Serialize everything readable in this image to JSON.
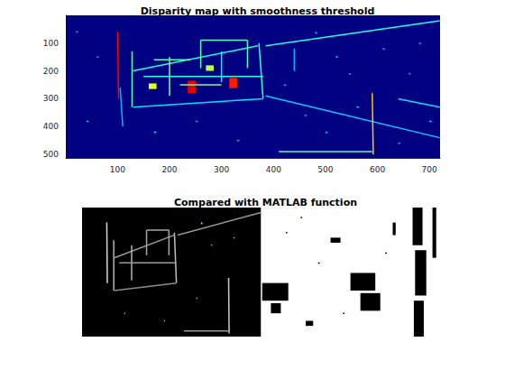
{
  "chart_data": [
    {
      "type": "image",
      "title": "Disparity map with smoothness threshold",
      "xlim": [
        0.5,
        720.5
      ],
      "ylim": [
        0.5,
        512.5
      ],
      "xticks": [
        100,
        200,
        300,
        400,
        500,
        600,
        700
      ],
      "yticks": [
        100,
        200,
        300,
        400,
        500
      ],
      "color": "jet",
      "clim": [
        0,
        1
      ],
      "rects": [
        [
          0.5,
          0.5,
          720.5,
          512.5,
          0
        ],
        [
          235,
          235,
          250,
          280,
          0.9
        ],
        [
          315,
          225,
          330,
          262,
          0.85
        ],
        [
          160,
          245,
          175,
          265,
          0.6
        ],
        [
          270,
          180,
          285,
          200,
          0.55
        ]
      ],
      "strokes": [
        [
          100,
          60,
          102,
          300,
          0.88
        ],
        [
          128,
          130,
          128,
          330,
          0.45
        ],
        [
          130,
          200,
          370,
          110,
          0.4
        ],
        [
          372,
          100,
          380,
          300,
          0.42
        ],
        [
          380,
          300,
          130,
          330,
          0.35
        ],
        [
          385,
          110,
          720,
          20,
          0.4
        ],
        [
          385,
          290,
          720,
          440,
          0.33
        ],
        [
          590,
          280,
          592,
          500,
          0.68
        ],
        [
          410,
          490,
          590,
          490,
          0.45
        ],
        [
          200,
          150,
          200,
          290,
          0.5
        ],
        [
          260,
          90,
          350,
          90,
          0.45
        ],
        [
          260,
          90,
          260,
          190,
          0.45
        ],
        [
          350,
          90,
          350,
          190,
          0.45
        ],
        [
          150,
          220,
          380,
          220,
          0.4
        ],
        [
          220,
          250,
          300,
          250,
          0.5
        ],
        [
          640,
          300,
          720,
          330,
          0.35
        ],
        [
          440,
          120,
          440,
          200,
          0.3
        ],
        [
          105,
          260,
          110,
          400,
          0.3
        ],
        [
          170,
          160,
          240,
          160,
          0.45
        ],
        [
          300,
          130,
          300,
          240,
          0.38
        ],
        [
          480,
          60,
          484,
          66,
          0.3
        ],
        [
          520,
          150,
          524,
          150,
          0.35
        ],
        [
          545,
          210,
          549,
          212,
          0.3
        ],
        [
          610,
          120,
          614,
          122,
          0.32
        ],
        [
          660,
          210,
          664,
          210,
          0.3
        ],
        [
          700,
          380,
          704,
          382,
          0.35
        ],
        [
          460,
          360,
          464,
          360,
          0.3
        ],
        [
          500,
          420,
          504,
          422,
          0.32
        ],
        [
          640,
          460,
          644,
          460,
          0.3
        ],
        [
          60,
          150,
          64,
          150,
          0.3
        ],
        [
          40,
          380,
          44,
          382,
          0.32
        ],
        [
          20,
          60,
          24,
          60,
          0.3
        ],
        [
          170,
          420,
          174,
          420,
          0.35
        ],
        [
          250,
          380,
          254,
          382,
          0.3
        ],
        [
          330,
          450,
          334,
          450,
          0.32
        ],
        [
          420,
          250,
          424,
          252,
          0.3
        ],
        [
          560,
          330,
          564,
          330,
          0.35
        ],
        [
          680,
          100,
          684,
          102,
          0.3
        ]
      ]
    },
    {
      "type": "image",
      "title": "Compared with MATLAB function",
      "tick_labels": false,
      "xlim": [
        0.5,
        1440.5
      ],
      "ylim": [
        0.5,
        512.5
      ],
      "color": "gray",
      "clim": [
        0,
        1
      ],
      "rects": [
        [
          0.5,
          0.5,
          720.5,
          512.5,
          0
        ],
        [
          720.5,
          0.5,
          1440.5,
          512.5,
          1
        ],
        [
          1330,
          0.5,
          1370,
          150,
          0
        ],
        [
          1340,
          170,
          1385,
          350,
          0
        ],
        [
          1335,
          370,
          1375,
          512.5,
          0
        ],
        [
          1410,
          0.5,
          1425,
          200,
          0
        ],
        [
          725,
          300,
          830,
          370,
          0
        ],
        [
          760,
          380,
          800,
          420,
          0
        ],
        [
          1080,
          260,
          1180,
          330,
          0
        ],
        [
          1120,
          340,
          1200,
          410,
          0
        ],
        [
          1000,
          120,
          1040,
          140,
          0
        ],
        [
          1250,
          60,
          1262,
          110,
          0
        ],
        [
          900,
          450,
          930,
          470,
          0
        ]
      ],
      "strokes": [
        [
          100,
          60,
          102,
          300,
          0.85
        ],
        [
          128,
          130,
          128,
          330,
          0.7
        ],
        [
          130,
          200,
          370,
          110,
          0.6
        ],
        [
          372,
          100,
          380,
          300,
          0.75
        ],
        [
          380,
          300,
          130,
          330,
          0.55
        ],
        [
          385,
          110,
          720,
          20,
          0.6
        ],
        [
          200,
          150,
          200,
          290,
          0.7
        ],
        [
          260,
          90,
          350,
          90,
          0.65
        ],
        [
          260,
          90,
          260,
          190,
          0.65
        ],
        [
          350,
          90,
          350,
          190,
          0.65
        ],
        [
          150,
          220,
          380,
          220,
          0.6
        ],
        [
          590,
          280,
          592,
          500,
          0.8
        ],
        [
          410,
          490,
          590,
          490,
          0.6
        ],
        [
          480,
          60,
          484,
          66,
          0.8
        ],
        [
          520,
          150,
          524,
          150,
          0.8
        ],
        [
          610,
          120,
          614,
          122,
          0.8
        ],
        [
          460,
          360,
          464,
          360,
          0.8
        ],
        [
          170,
          420,
          174,
          420,
          0.8
        ],
        [
          330,
          450,
          334,
          450,
          0.8
        ],
        [
          820,
          100,
          826,
          100,
          0
        ],
        [
          950,
          220,
          956,
          222,
          0
        ],
        [
          1050,
          420,
          1056,
          420,
          0
        ],
        [
          1220,
          180,
          1226,
          182,
          0
        ],
        [
          880,
          40,
          886,
          40,
          0
        ]
      ]
    }
  ]
}
